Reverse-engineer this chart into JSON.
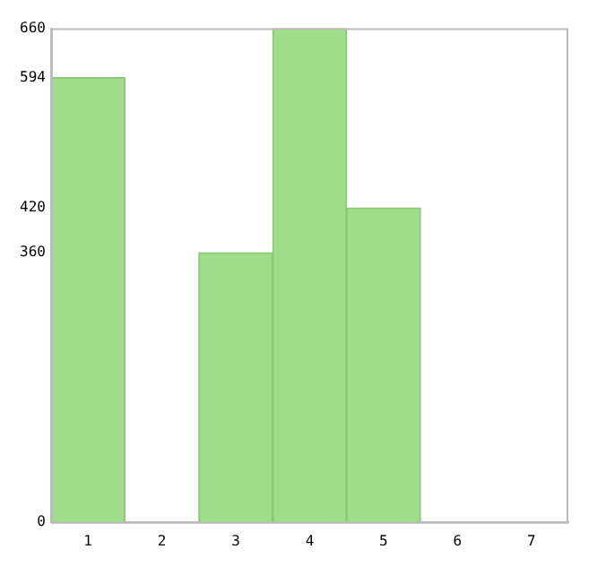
{
  "chart_data": {
    "type": "bar",
    "categories": [
      "1",
      "2",
      "3",
      "4",
      "5",
      "6",
      "7"
    ],
    "values": [
      594,
      0,
      360,
      660,
      420,
      0,
      0
    ],
    "color": "#9ede8a",
    "ylim": [
      0,
      660
    ],
    "yticks": [
      0,
      360,
      420,
      594,
      660
    ],
    "grid": false,
    "legend": false
  }
}
